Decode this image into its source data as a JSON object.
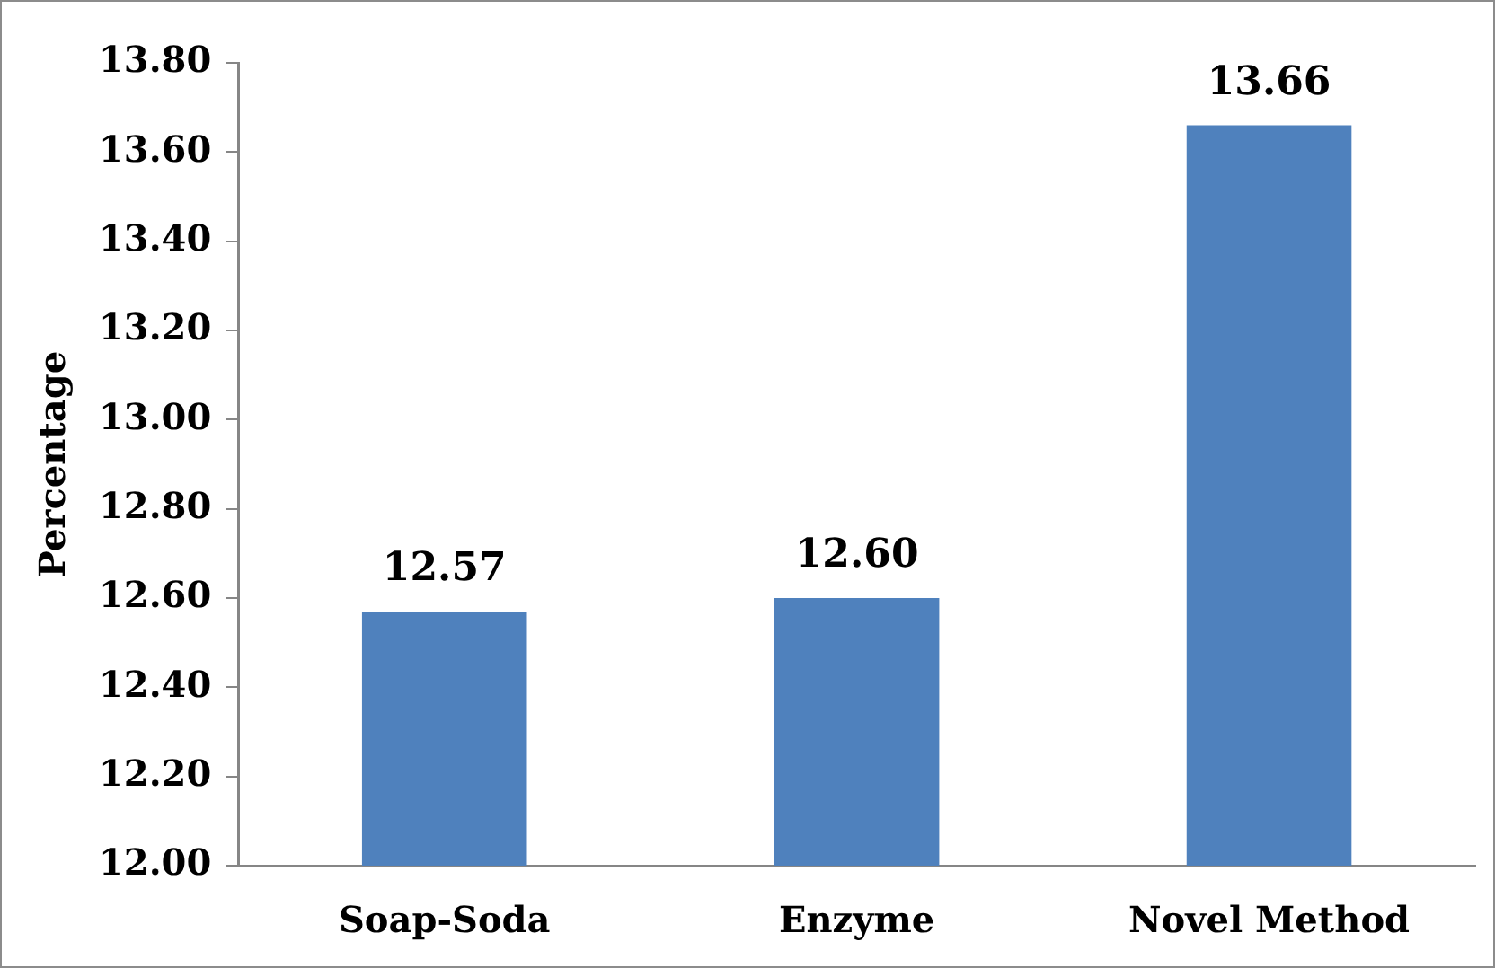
{
  "chart_data": {
    "type": "bar",
    "ylabel": "Percentage",
    "categories": [
      "Soap-Soda",
      "Enzyme",
      "Novel Method"
    ],
    "values": [
      12.57,
      12.6,
      13.66
    ],
    "color": "#4f81bd",
    "value_labels": [
      "12.57",
      "12.60",
      "13.66"
    ],
    "ylim": [
      12,
      13.8
    ],
    "yticks": [
      {
        "value": 12,
        "label": "12.00"
      },
      {
        "value": 12.2,
        "label": "12.20"
      },
      {
        "value": 12.4,
        "label": "12.40"
      },
      {
        "value": 12.6,
        "label": "12.60"
      },
      {
        "value": 12.8,
        "label": "12.80"
      },
      {
        "value": 13,
        "label": "13.00"
      },
      {
        "value": 13.2,
        "label": "13.20"
      },
      {
        "value": 13.4,
        "label": "13.40"
      },
      {
        "value": 13.6,
        "label": "13.60"
      },
      {
        "value": 13.8,
        "label": "13.80"
      }
    ],
    "grid": false,
    "legend": false
  }
}
